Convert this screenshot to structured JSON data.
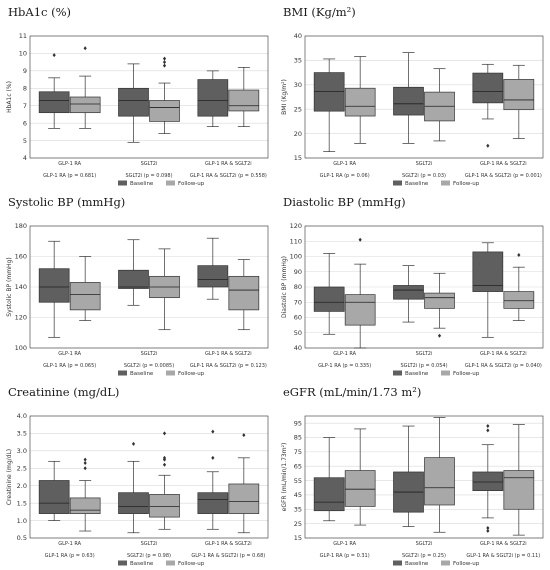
{
  "colors": {
    "baseline": "#5f5f5f",
    "followup": "#a8a8a8",
    "grid": "#d9d9d9",
    "whisker": "#333333"
  },
  "legend": {
    "baseline": "Baseline",
    "followup": "Follow-up"
  },
  "chart_data": [
    {
      "type": "box",
      "title": "HbA1c (%)",
      "ylabel": "HbA1c (%)",
      "ylim": [
        4,
        11
      ],
      "yticks": [
        4,
        5,
        6,
        7,
        8,
        9,
        10,
        11
      ],
      "grid": true,
      "categories": [
        "GLP-1 RA",
        "SGLT2i",
        "GLP-1 RA & SGLT2i"
      ],
      "p_labels": [
        "GLP-1 RA (p = 0.681)",
        "SGLT2i (p = 0.098)",
        "GLP-1 RA & SGLT2i (p = 0.558)"
      ],
      "series": [
        {
          "name": "Baseline",
          "boxes": [
            {
              "min": 5.7,
              "q1": 6.6,
              "median": 7.3,
              "q3": 7.8,
              "max": 8.6,
              "outliers": [
                9.9
              ]
            },
            {
              "min": 4.9,
              "q1": 6.4,
              "median": 7.3,
              "q3": 8.0,
              "max": 9.4,
              "outliers": []
            },
            {
              "min": 5.8,
              "q1": 6.4,
              "median": 7.3,
              "q3": 8.5,
              "max": 9.0,
              "outliers": []
            }
          ]
        },
        {
          "name": "Follow-up",
          "boxes": [
            {
              "min": 5.7,
              "q1": 6.6,
              "median": 7.1,
              "q3": 7.5,
              "max": 8.7,
              "outliers": [
                10.3
              ]
            },
            {
              "min": 5.4,
              "q1": 6.1,
              "median": 6.9,
              "q3": 7.3,
              "max": 8.3,
              "outliers": [
                9.3,
                9.5,
                9.7
              ]
            },
            {
              "min": 5.8,
              "q1": 6.7,
              "median": 7.0,
              "q3": 7.9,
              "max": 9.2,
              "outliers": []
            }
          ]
        }
      ]
    },
    {
      "type": "box",
      "title": "BMI (Kg/m²)",
      "ylabel": "BMI (Kg/m²)",
      "ylim": [
        15,
        40
      ],
      "yticks": [
        15,
        20,
        25,
        30,
        35,
        40
      ],
      "grid": true,
      "categories": [
        "GLP-1 RA",
        "SGLT2i",
        "GLP-1 RA & SGLT2i"
      ],
      "p_labels": [
        "GLP-1 RA (p = 0.06)",
        "SGLT2i (p = 0.03)",
        "GLP-1 RA & SGLT2i (p = 0.001)"
      ],
      "series": [
        {
          "name": "Baseline",
          "boxes": [
            {
              "min": 16.3,
              "q1": 24.6,
              "median": 28.6,
              "q3": 32.5,
              "max": 35.3,
              "outliers": []
            },
            {
              "min": 18.0,
              "q1": 23.8,
              "median": 26.1,
              "q3": 29.5,
              "max": 36.6,
              "outliers": []
            },
            {
              "min": 23.0,
              "q1": 26.3,
              "median": 28.6,
              "q3": 32.4,
              "max": 34.2,
              "outliers": [
                17.5
              ]
            }
          ]
        },
        {
          "name": "Follow-up",
          "boxes": [
            {
              "min": 18.0,
              "q1": 23.6,
              "median": 25.6,
              "q3": 29.3,
              "max": 35.8,
              "outliers": []
            },
            {
              "min": 18.5,
              "q1": 22.6,
              "median": 25.6,
              "q3": 28.5,
              "max": 33.3,
              "outliers": []
            },
            {
              "min": 19.0,
              "q1": 24.9,
              "median": 26.9,
              "q3": 31.1,
              "max": 34.0,
              "outliers": []
            }
          ]
        }
      ]
    },
    {
      "type": "box",
      "title": "Systolic BP (mmHg)",
      "ylabel": "Systolic BP (mmHg)",
      "ylim": [
        100,
        180
      ],
      "yticks": [
        100,
        120,
        140,
        160,
        180
      ],
      "grid": true,
      "categories": [
        "GLP-1 RA",
        "SGLT2i",
        "GLP-1 RA & SGLT2i"
      ],
      "p_labels": [
        "GLP-1 RA (p = 0.065)",
        "SGLT2i (p = 0.0085)",
        "GLP-1 RA & SGLT2i (p = 0.123)"
      ],
      "series": [
        {
          "name": "Baseline",
          "boxes": [
            {
              "min": 107,
              "q1": 130,
              "median": 140,
              "q3": 152,
              "max": 170,
              "outliers": []
            },
            {
              "min": 128,
              "q1": 139,
              "median": 140,
              "q3": 151,
              "max": 171,
              "outliers": []
            },
            {
              "min": 132,
              "q1": 140,
              "median": 145,
              "q3": 154,
              "max": 172,
              "outliers": []
            }
          ]
        },
        {
          "name": "Follow-up",
          "boxes": [
            {
              "min": 118,
              "q1": 125,
              "median": 135,
              "q3": 143,
              "max": 160,
              "outliers": []
            },
            {
              "min": 112,
              "q1": 133,
              "median": 140,
              "q3": 147,
              "max": 165,
              "outliers": []
            },
            {
              "min": 112,
              "q1": 125,
              "median": 138,
              "q3": 147,
              "max": 158,
              "outliers": []
            }
          ]
        }
      ]
    },
    {
      "type": "box",
      "title": "Diastolic BP (mmHg)",
      "ylabel": "Diastolic BP (mmHg)",
      "ylim": [
        40,
        120
      ],
      "yticks": [
        40,
        50,
        60,
        70,
        80,
        90,
        100,
        110,
        120
      ],
      "grid": true,
      "categories": [
        "GLP-1 RA",
        "SGLT2i",
        "GLP-1 RA & SGLT2i"
      ],
      "p_labels": [
        "GLP-1 RA (p = 0.335)",
        "SGLT2i (p = 0.054)",
        "GLP-1 RA & SGLT2i (p = 0.040)"
      ],
      "series": [
        {
          "name": "Baseline",
          "boxes": [
            {
              "min": 49,
              "q1": 64,
              "median": 70,
              "q3": 80,
              "max": 102,
              "outliers": []
            },
            {
              "min": 57,
              "q1": 72,
              "median": 78,
              "q3": 81,
              "max": 94,
              "outliers": []
            },
            {
              "min": 47,
              "q1": 77,
              "median": 81,
              "q3": 103,
              "max": 109,
              "outliers": []
            }
          ]
        },
        {
          "name": "Follow-up",
          "boxes": [
            {
              "min": 40,
              "q1": 55,
              "median": 70,
              "q3": 75,
              "max": 95,
              "outliers": [
                111
              ]
            },
            {
              "min": 53,
              "q1": 66,
              "median": 73,
              "q3": 76,
              "max": 89,
              "outliers": [
                48
              ]
            },
            {
              "min": 58,
              "q1": 66,
              "median": 71,
              "q3": 77,
              "max": 93,
              "outliers": [
                101
              ]
            }
          ]
        }
      ]
    },
    {
      "type": "box",
      "title": "Creatinine (mg/dL)",
      "ylabel": "Creatinine (mg/dL)",
      "ylim": [
        0.5,
        4.0
      ],
      "yticks": [
        0.5,
        1.0,
        1.5,
        2.0,
        2.5,
        3.0,
        3.5,
        4.0
      ],
      "grid": true,
      "categories": [
        "GLP-1 RA",
        "SGLT2i",
        "GLP-1 RA & SGLT2i"
      ],
      "p_labels": [
        "GLP-1 RA (p = 0.63)",
        "SGLT2i (p = 0.98)",
        "GLP-1 RA & SGLT2i (p = 0.68)"
      ],
      "series": [
        {
          "name": "Baseline",
          "boxes": [
            {
              "min": 1.0,
              "q1": 1.2,
              "median": 1.5,
              "q3": 2.15,
              "max": 2.7,
              "outliers": []
            },
            {
              "min": 0.65,
              "q1": 1.2,
              "median": 1.4,
              "q3": 1.8,
              "max": 2.7,
              "outliers": [
                3.2
              ]
            },
            {
              "min": 0.75,
              "q1": 1.2,
              "median": 1.6,
              "q3": 1.8,
              "max": 2.4,
              "outliers": [
                2.8,
                3.55
              ]
            }
          ]
        },
        {
          "name": "Follow-up",
          "boxes": [
            {
              "min": 0.7,
              "q1": 1.2,
              "median": 1.3,
              "q3": 1.65,
              "max": 2.15,
              "outliers": [
                2.5,
                2.65,
                2.75
              ]
            },
            {
              "min": 0.75,
              "q1": 1.1,
              "median": 1.4,
              "q3": 1.75,
              "max": 2.3,
              "outliers": [
                2.6,
                2.75,
                2.8,
                3.5
              ]
            },
            {
              "min": 0.65,
              "q1": 1.2,
              "median": 1.55,
              "q3": 2.05,
              "max": 2.8,
              "outliers": [
                3.45
              ]
            }
          ]
        }
      ]
    },
    {
      "type": "box",
      "title": "eGFR (mL/min/1.73 m²)",
      "ylabel": "eGFR (mL/min/1.73m²)",
      "ylim": [
        15,
        100
      ],
      "yticks": [
        15,
        25,
        35,
        45,
        55,
        65,
        75,
        85,
        95
      ],
      "grid": true,
      "categories": [
        "GLP-1 RA",
        "SGLT2i",
        "GLP-1 RA & SGLT2i"
      ],
      "p_labels": [
        "GLP-1 RA (p = 0.31)",
        "SGLT2i (p = 0.25)",
        "GLP-1 RA & SGLT2i (p = 0.11)"
      ],
      "series": [
        {
          "name": "Baseline",
          "boxes": [
            {
              "min": 27,
              "q1": 34,
              "median": 40,
              "q3": 57,
              "max": 85,
              "outliers": []
            },
            {
              "min": 23,
              "q1": 33,
              "median": 47,
              "q3": 61,
              "max": 93,
              "outliers": []
            },
            {
              "min": 29,
              "q1": 48,
              "median": 54,
              "q3": 61,
              "max": 80,
              "outliers": [
                20,
                22,
                90,
                93
              ]
            }
          ]
        },
        {
          "name": "Follow-up",
          "boxes": [
            {
              "min": 24,
              "q1": 37,
              "median": 49,
              "q3": 62,
              "max": 91,
              "outliers": []
            },
            {
              "min": 19,
              "q1": 38,
              "median": 50,
              "q3": 71,
              "max": 99,
              "outliers": []
            },
            {
              "min": 17,
              "q1": 35,
              "median": 57,
              "q3": 62,
              "max": 94,
              "outliers": []
            }
          ]
        }
      ]
    }
  ]
}
